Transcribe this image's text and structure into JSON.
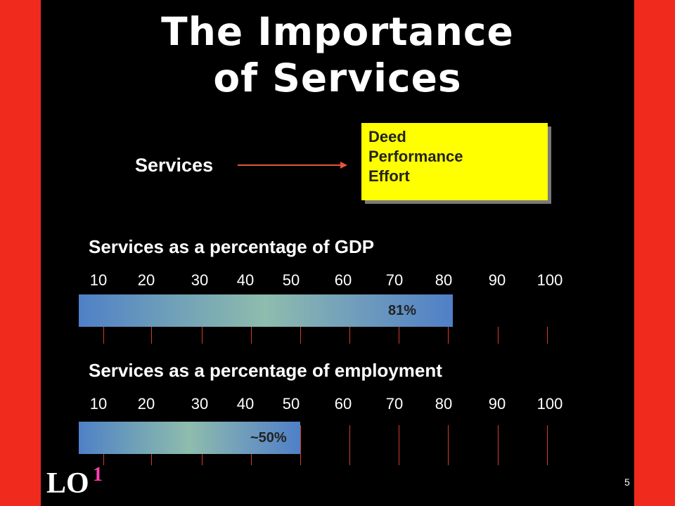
{
  "title_line1": "The Importance",
  "title_line2": "of Services",
  "services_label": "Services",
  "definition": [
    "Deed",
    "Performance",
    "Effort"
  ],
  "colors": {
    "background": "#000000",
    "border": "#f02b1e",
    "definition_box": "#ffff00",
    "bar_start": "#4f80c7",
    "bar_mid": "#8ebcad",
    "tick_line": "#d63a2a",
    "lo_number": "#ff3fb0"
  },
  "chart_data": [
    {
      "type": "bar",
      "orientation": "horizontal",
      "title": "Services as a percentage of GDP",
      "tick_labels": [
        "10",
        "20",
        "30",
        "40",
        "50",
        "60",
        "70",
        "80",
        "90",
        "100"
      ],
      "categories": [
        "Services as a percentage of GDP"
      ],
      "values": [
        81
      ],
      "value_label": "81%",
      "xlim": [
        0,
        100
      ]
    },
    {
      "type": "bar",
      "orientation": "horizontal",
      "title": "Services as a percentage of employment",
      "tick_labels": [
        "10",
        "20",
        "30",
        "40",
        "50",
        "60",
        "70",
        "80",
        "90",
        "100"
      ],
      "categories": [
        "Services as a percentage of employment"
      ],
      "values": [
        50
      ],
      "value_label": "~50%",
      "xlim": [
        0,
        100
      ]
    }
  ],
  "footer": {
    "lo_label": "LO",
    "lo_number": "1",
    "page_number": "5"
  }
}
